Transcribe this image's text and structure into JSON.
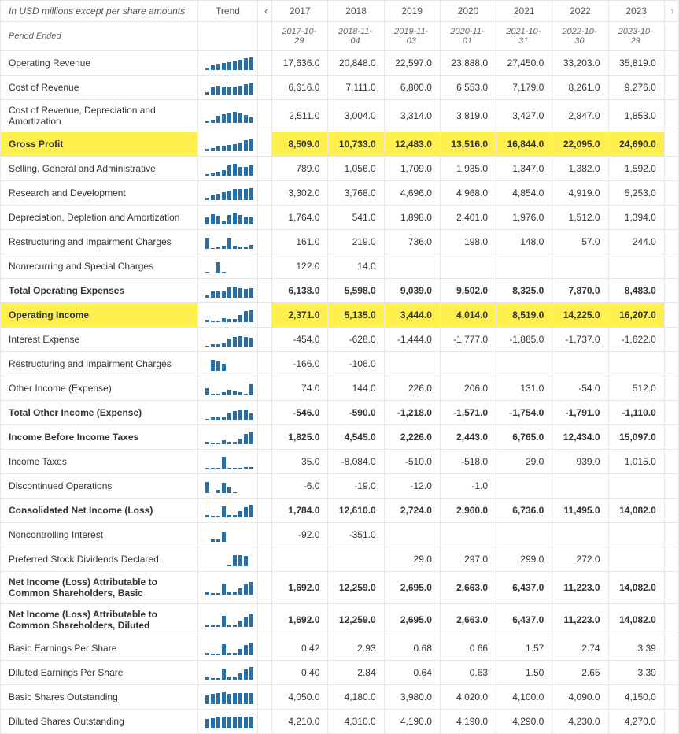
{
  "header": {
    "units_label": "In USD millions except per share amounts",
    "trend_label": "Trend",
    "nav_prev": "‹",
    "nav_next": "›",
    "period_label": "Period Ended",
    "years": [
      "2017",
      "2018",
      "2019",
      "2020",
      "2021",
      "2022",
      "2023"
    ],
    "dates": [
      "2017-10-29",
      "2018-11-04",
      "2019-11-03",
      "2020-11-01",
      "2021-10-31",
      "2022-10-30",
      "2023-10-29"
    ]
  },
  "spark_color": "#2a6ea6",
  "highlight_color": "#fff04d",
  "rows": [
    {
      "label": "Operating Revenue",
      "bold": false,
      "hl": false,
      "values": [
        "17,636.0",
        "20,848.0",
        "22,597.0",
        "23,888.0",
        "27,450.0",
        "33,203.0",
        "35,819.0"
      ],
      "spark": [
        3,
        6,
        8,
        9,
        10,
        11,
        13,
        15,
        16
      ]
    },
    {
      "label": "Cost of Revenue",
      "bold": false,
      "hl": false,
      "values": [
        "6,616.0",
        "7,111.0",
        "6,800.0",
        "6,553.0",
        "7,179.0",
        "8,261.0",
        "9,276.0"
      ],
      "spark": [
        3,
        9,
        11,
        10,
        9,
        10,
        11,
        13,
        15
      ]
    },
    {
      "label": "Cost of Revenue, Depreciation and Amortization",
      "bold": false,
      "hl": false,
      "values": [
        "2,511.0",
        "3,004.0",
        "3,314.0",
        "3,819.0",
        "3,427.0",
        "2,847.0",
        "1,853.0"
      ],
      "spark": [
        2,
        4,
        9,
        11,
        12,
        14,
        12,
        10,
        7
      ]
    },
    {
      "label": "Gross Profit",
      "bold": true,
      "hl": true,
      "values": [
        "8,509.0",
        "10,733.0",
        "12,483.0",
        "13,516.0",
        "16,844.0",
        "22,095.0",
        "24,690.0"
      ],
      "spark": [
        3,
        4,
        6,
        7,
        8,
        9,
        11,
        14,
        16
      ]
    },
    {
      "label": "Selling, General and Administrative",
      "bold": false,
      "hl": false,
      "values": [
        "789.0",
        "1,056.0",
        "1,709.0",
        "1,935.0",
        "1,347.0",
        "1,382.0",
        "1,592.0"
      ],
      "spark": [
        2,
        3,
        5,
        7,
        13,
        15,
        11,
        11,
        13
      ]
    },
    {
      "label": "Research and Development",
      "bold": false,
      "hl": false,
      "values": [
        "3,302.0",
        "3,768.0",
        "4,696.0",
        "4,968.0",
        "4,854.0",
        "4,919.0",
        "5,253.0"
      ],
      "spark": [
        3,
        6,
        8,
        10,
        12,
        14,
        14,
        14,
        15
      ]
    },
    {
      "label": "Depreciation, Depletion and Amortization",
      "bold": false,
      "hl": false,
      "values": [
        "1,764.0",
        "541.0",
        "1,898.0",
        "2,401.0",
        "1,976.0",
        "1,512.0",
        "1,394.0"
      ],
      "spark": [
        9,
        13,
        11,
        4,
        12,
        15,
        12,
        10,
        9
      ]
    },
    {
      "label": "Restructuring and Impairment Charges",
      "bold": false,
      "hl": false,
      "values": [
        "161.0",
        "219.0",
        "736.0",
        "198.0",
        "148.0",
        "57.0",
        "244.0"
      ],
      "spark": [
        14,
        1,
        3,
        4,
        14,
        4,
        3,
        2,
        5
      ]
    },
    {
      "label": "Nonrecurring and Special Charges",
      "bold": false,
      "hl": false,
      "values": [
        "122.0",
        "14.0",
        "",
        "",
        "",
        "",
        ""
      ],
      "spark": [
        1,
        0,
        14,
        2,
        0,
        0,
        0,
        0,
        0
      ]
    },
    {
      "label": "Total Operating Expenses",
      "bold": true,
      "hl": false,
      "values": [
        "6,138.0",
        "5,598.0",
        "9,039.0",
        "9,502.0",
        "8,325.0",
        "7,870.0",
        "8,483.0"
      ],
      "spark": [
        3,
        8,
        9,
        8,
        13,
        14,
        12,
        11,
        12
      ]
    },
    {
      "label": "Operating Income",
      "bold": true,
      "hl": true,
      "values": [
        "2,371.0",
        "5,135.0",
        "3,444.0",
        "4,014.0",
        "8,519.0",
        "14,225.0",
        "16,207.0"
      ],
      "spark": [
        3,
        2,
        2,
        5,
        4,
        4,
        9,
        14,
        16
      ]
    },
    {
      "label": "Interest Expense",
      "bold": false,
      "hl": false,
      "values": [
        "-454.0",
        "-628.0",
        "-1,444.0",
        "-1,777.0",
        "-1,885.0",
        "-1,737.0",
        "-1,622.0"
      ],
      "spark": [
        1,
        3,
        3,
        4,
        10,
        12,
        13,
        12,
        11
      ]
    },
    {
      "label": "Restructuring and Impairment Charges",
      "bold": false,
      "hl": false,
      "values": [
        "-166.0",
        "-106.0",
        "",
        "",
        "",
        "",
        ""
      ],
      "spark": [
        0,
        14,
        12,
        9,
        0,
        0,
        0,
        0,
        0
      ]
    },
    {
      "label": "Other Income (Expense)",
      "bold": false,
      "hl": false,
      "values": [
        "74.0",
        "144.0",
        "226.0",
        "206.0",
        "131.0",
        "-54.0",
        "512.0"
      ],
      "spark": [
        9,
        2,
        2,
        4,
        7,
        6,
        4,
        2,
        15
      ]
    },
    {
      "label": "Total Other Income (Expense)",
      "bold": true,
      "hl": false,
      "values": [
        "-546.0",
        "-590.0",
        "-1,218.0",
        "-1,571.0",
        "-1,754.0",
        "-1,791.0",
        "-1,110.0"
      ],
      "spark": [
        1,
        3,
        4,
        4,
        9,
        11,
        13,
        13,
        8
      ]
    },
    {
      "label": "Income Before Income Taxes",
      "bold": true,
      "hl": false,
      "values": [
        "1,825.0",
        "4,545.0",
        "2,226.0",
        "2,443.0",
        "6,765.0",
        "12,434.0",
        "15,097.0"
      ],
      "spark": [
        3,
        2,
        2,
        5,
        3,
        3,
        7,
        13,
        16
      ]
    },
    {
      "label": "Income Taxes",
      "bold": false,
      "hl": false,
      "values": [
        "35.0",
        "-8,084.0",
        "-510.0",
        "-518.0",
        "29.0",
        "939.0",
        "1,015.0"
      ],
      "spark": [
        1,
        1,
        1,
        15,
        1,
        1,
        1,
        2,
        2
      ]
    },
    {
      "label": "Discontinued Operations",
      "bold": false,
      "hl": false,
      "values": [
        "-6.0",
        "-19.0",
        "-12.0",
        "-1.0",
        "",
        "",
        ""
      ],
      "spark": [
        14,
        0,
        4,
        13,
        8,
        1,
        0,
        0,
        0
      ]
    },
    {
      "label": "Consolidated Net Income (Loss)",
      "bold": true,
      "hl": false,
      "values": [
        "1,784.0",
        "12,610.0",
        "2,724.0",
        "2,960.0",
        "6,736.0",
        "11,495.0",
        "14,082.0"
      ],
      "spark": [
        3,
        2,
        2,
        14,
        3,
        3,
        8,
        13,
        16
      ]
    },
    {
      "label": "Noncontrolling Interest",
      "bold": false,
      "hl": false,
      "values": [
        "-92.0",
        "-351.0",
        "",
        "",
        "",
        "",
        ""
      ],
      "spark": [
        0,
        3,
        3,
        12,
        0,
        0,
        0,
        0,
        0
      ]
    },
    {
      "label": "Preferred Stock Dividends Declared",
      "bold": false,
      "hl": false,
      "values": [
        "",
        "",
        "29.0",
        "297.0",
        "299.0",
        "272.0",
        ""
      ],
      "spark": [
        0,
        0,
        0,
        0,
        2,
        14,
        14,
        13,
        0
      ]
    },
    {
      "label": "Net Income (Loss) Attributable to Common Shareholders, Basic",
      "bold": true,
      "hl": false,
      "values": [
        "1,692.0",
        "12,259.0",
        "2,695.0",
        "2,663.0",
        "6,437.0",
        "11,223.0",
        "14,082.0"
      ],
      "spark": [
        3,
        2,
        2,
        14,
        3,
        3,
        8,
        13,
        16
      ]
    },
    {
      "label": "Net Income (Loss) Attributable to Common Shareholders, Diluted",
      "bold": true,
      "hl": false,
      "values": [
        "1,692.0",
        "12,259.0",
        "2,695.0",
        "2,663.0",
        "6,437.0",
        "11,223.0",
        "14,082.0"
      ],
      "spark": [
        3,
        2,
        2,
        14,
        3,
        3,
        8,
        13,
        16
      ]
    },
    {
      "label": "Basic Earnings Per Share",
      "bold": false,
      "hl": false,
      "values": [
        "0.42",
        "2.93",
        "0.68",
        "0.66",
        "1.57",
        "2.74",
        "3.39"
      ],
      "spark": [
        3,
        2,
        2,
        14,
        3,
        3,
        8,
        13,
        16
      ]
    },
    {
      "label": "Diluted Earnings Per Share",
      "bold": false,
      "hl": false,
      "values": [
        "0.40",
        "2.84",
        "0.64",
        "0.63",
        "1.50",
        "2.65",
        "3.30"
      ],
      "spark": [
        3,
        2,
        2,
        14,
        3,
        3,
        8,
        13,
        16
      ]
    },
    {
      "label": "Basic Shares Outstanding",
      "bold": false,
      "hl": false,
      "values": [
        "4,050.0",
        "4,180.0",
        "3,980.0",
        "4,020.0",
        "4,100.0",
        "4,090.0",
        "4,150.0"
      ],
      "spark": [
        11,
        13,
        14,
        15,
        13,
        14,
        14,
        14,
        14
      ]
    },
    {
      "label": "Diluted Shares Outstanding",
      "bold": false,
      "hl": false,
      "values": [
        "4,210.0",
        "4,310.0",
        "4,190.0",
        "4,190.0",
        "4,290.0",
        "4,230.0",
        "4,270.0"
      ],
      "spark": [
        12,
        13,
        15,
        15,
        14,
        14,
        15,
        14,
        15
      ]
    }
  ]
}
